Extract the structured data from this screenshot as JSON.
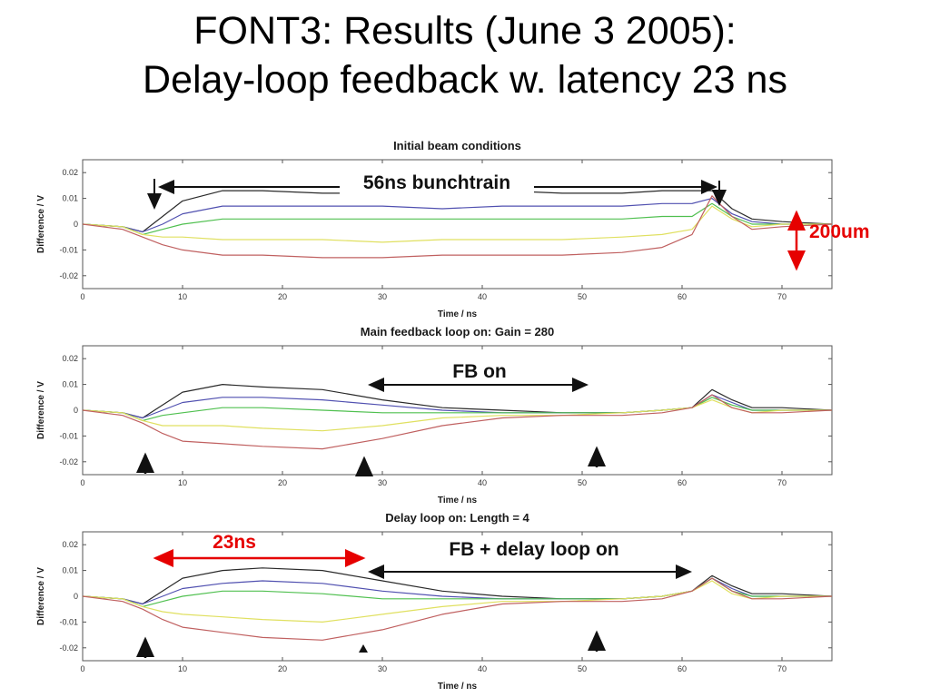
{
  "slide": {
    "title_line1": "FONT3: Results (June 3 2005):",
    "title_line2": "Delay-loop feedback w. latency 23 ns"
  },
  "annotations": {
    "bunchtrain": "56ns bunchtrain",
    "beam_size": "200um",
    "fb_on": "FB on",
    "delay_ns": "23ns",
    "fb_delay_on": "FB + delay loop on"
  },
  "colors": {
    "annotation_red": "#e60000",
    "annotation_black": "#111111",
    "axis": "#555555"
  },
  "chart_data": [
    {
      "type": "line",
      "title": "Initial beam conditions",
      "xlabel": "Time / ns",
      "ylabel": "Difference / V",
      "xlim": [
        0,
        75
      ],
      "ylim": [
        -0.025,
        0.025
      ],
      "xticks": [
        0,
        10,
        20,
        30,
        40,
        50,
        60,
        70
      ],
      "yticks": [
        -0.02,
        -0.01,
        0,
        0.01,
        0.02
      ],
      "x": [
        0,
        4,
        6,
        8,
        10,
        14,
        18,
        24,
        30,
        36,
        42,
        48,
        54,
        58,
        61,
        63,
        65,
        67,
        70,
        75
      ],
      "series": [
        {
          "name": "trace-black",
          "color": "#2a2a2a",
          "values": [
            0,
            -0.001,
            -0.003,
            0.003,
            0.009,
            0.013,
            0.013,
            0.012,
            0.012,
            0.012,
            0.013,
            0.012,
            0.012,
            0.013,
            0.013,
            0.013,
            0.006,
            0.002,
            0.001,
            0
          ]
        },
        {
          "name": "trace-blue",
          "color": "#5050b0",
          "values": [
            0,
            -0.001,
            -0.003,
            0,
            0.004,
            0.007,
            0.007,
            0.007,
            0.007,
            0.006,
            0.007,
            0.007,
            0.007,
            0.008,
            0.008,
            0.01,
            0.004,
            0.001,
            0,
            0
          ]
        },
        {
          "name": "trace-green",
          "color": "#50c050",
          "values": [
            0,
            -0.001,
            -0.004,
            -0.002,
            0,
            0.002,
            0.002,
            0.002,
            0.002,
            0.002,
            0.002,
            0.002,
            0.002,
            0.003,
            0.003,
            0.008,
            0.003,
            0,
            0,
            0
          ]
        },
        {
          "name": "trace-yellow",
          "color": "#e0e060",
          "values": [
            0,
            -0.001,
            -0.004,
            -0.005,
            -0.005,
            -0.006,
            -0.006,
            -0.006,
            -0.007,
            -0.006,
            -0.006,
            -0.006,
            -0.005,
            -0.004,
            -0.002,
            0.007,
            0.002,
            -0.001,
            0,
            0
          ]
        },
        {
          "name": "trace-red",
          "color": "#c06060",
          "values": [
            0,
            -0.002,
            -0.005,
            -0.008,
            -0.01,
            -0.012,
            -0.012,
            -0.013,
            -0.013,
            -0.012,
            -0.012,
            -0.012,
            -0.011,
            -0.009,
            -0.004,
            0.011,
            0.003,
            -0.002,
            -0.001,
            0
          ]
        }
      ]
    },
    {
      "type": "line",
      "title": "Main feedback loop on: Gain = 280",
      "xlabel": "Time / ns",
      "ylabel": "Difference / V",
      "xlim": [
        0,
        75
      ],
      "ylim": [
        -0.025,
        0.025
      ],
      "xticks": [
        0,
        10,
        20,
        30,
        40,
        50,
        60,
        70
      ],
      "yticks": [
        -0.02,
        -0.01,
        0,
        0.01,
        0.02
      ],
      "x": [
        0,
        4,
        6,
        8,
        10,
        14,
        18,
        24,
        30,
        36,
        42,
        48,
        54,
        58,
        61,
        63,
        65,
        67,
        70,
        75
      ],
      "series": [
        {
          "name": "trace-black",
          "color": "#2a2a2a",
          "values": [
            0,
            -0.001,
            -0.003,
            0.002,
            0.007,
            0.01,
            0.009,
            0.008,
            0.004,
            0.001,
            0,
            -0.001,
            -0.001,
            0,
            0.001,
            0.008,
            0.004,
            0.001,
            0.001,
            0
          ]
        },
        {
          "name": "trace-blue",
          "color": "#5050b0",
          "values": [
            0,
            -0.001,
            -0.003,
            0,
            0.003,
            0.005,
            0.005,
            0.004,
            0.002,
            0,
            -0.001,
            -0.001,
            -0.001,
            0,
            0.001,
            0.006,
            0.003,
            0,
            0,
            0
          ]
        },
        {
          "name": "trace-green",
          "color": "#50c050",
          "values": [
            0,
            -0.001,
            -0.004,
            -0.002,
            -0.001,
            0.001,
            0.001,
            0,
            -0.001,
            -0.001,
            -0.001,
            -0.001,
            -0.001,
            0,
            0.001,
            0.005,
            0.002,
            0,
            0,
            0
          ]
        },
        {
          "name": "trace-yellow",
          "color": "#e0e060",
          "values": [
            0,
            -0.001,
            -0.004,
            -0.006,
            -0.006,
            -0.006,
            -0.007,
            -0.008,
            -0.006,
            -0.003,
            -0.002,
            -0.002,
            -0.001,
            0,
            0.001,
            0.004,
            0.001,
            -0.001,
            0,
            0
          ]
        },
        {
          "name": "trace-red",
          "color": "#c06060",
          "values": [
            0,
            -0.002,
            -0.005,
            -0.009,
            -0.012,
            -0.013,
            -0.014,
            -0.015,
            -0.011,
            -0.006,
            -0.003,
            -0.002,
            -0.002,
            -0.001,
            0.001,
            0.006,
            0.001,
            -0.001,
            -0.001,
            0
          ]
        }
      ]
    },
    {
      "type": "line",
      "title": "Delay loop on: Length = 4",
      "xlabel": "Time / ns",
      "ylabel": "Difference / V",
      "xlim": [
        0,
        75
      ],
      "ylim": [
        -0.025,
        0.025
      ],
      "xticks": [
        0,
        10,
        20,
        30,
        40,
        50,
        60,
        70
      ],
      "yticks": [
        -0.02,
        -0.01,
        0,
        0.01,
        0.02
      ],
      "x": [
        0,
        4,
        6,
        8,
        10,
        14,
        18,
        24,
        30,
        36,
        42,
        48,
        54,
        58,
        61,
        63,
        65,
        67,
        70,
        75
      ],
      "series": [
        {
          "name": "trace-black",
          "color": "#2a2a2a",
          "values": [
            0,
            -0.001,
            -0.003,
            0.002,
            0.007,
            0.01,
            0.011,
            0.01,
            0.006,
            0.002,
            0,
            -0.001,
            -0.001,
            0,
            0.002,
            0.008,
            0.004,
            0.001,
            0.001,
            0
          ]
        },
        {
          "name": "trace-blue",
          "color": "#5050b0",
          "values": [
            0,
            -0.001,
            -0.003,
            0,
            0.003,
            0.005,
            0.006,
            0.005,
            0.002,
            0,
            -0.001,
            -0.001,
            -0.001,
            0,
            0.002,
            0.007,
            0.003,
            0,
            0,
            0
          ]
        },
        {
          "name": "trace-green",
          "color": "#50c050",
          "values": [
            0,
            -0.001,
            -0.004,
            -0.002,
            0,
            0.002,
            0.002,
            0.001,
            -0.001,
            -0.001,
            -0.001,
            -0.001,
            -0.001,
            0,
            0.002,
            0.007,
            0.002,
            0,
            0,
            0
          ]
        },
        {
          "name": "trace-yellow",
          "color": "#e0e060",
          "values": [
            0,
            -0.001,
            -0.004,
            -0.006,
            -0.007,
            -0.008,
            -0.009,
            -0.01,
            -0.007,
            -0.004,
            -0.002,
            -0.002,
            -0.001,
            0,
            0.002,
            0.006,
            0.001,
            -0.001,
            0,
            0
          ]
        },
        {
          "name": "trace-red",
          "color": "#c06060",
          "values": [
            0,
            -0.002,
            -0.005,
            -0.009,
            -0.012,
            -0.014,
            -0.016,
            -0.017,
            -0.013,
            -0.007,
            -0.003,
            -0.002,
            -0.002,
            -0.001,
            0.002,
            0.007,
            0.002,
            -0.001,
            -0.001,
            0
          ]
        }
      ]
    }
  ]
}
